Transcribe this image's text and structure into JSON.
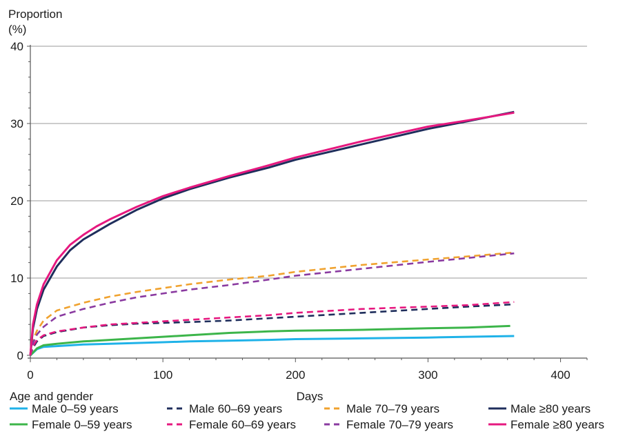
{
  "chart_data": {
    "type": "line",
    "ylabel_line1": "Proportion",
    "ylabel_line2": "(%)",
    "xlabel": "Days",
    "legend_title": "Age and gender",
    "xlim": [
      0,
      420
    ],
    "ylim": [
      0,
      40
    ],
    "xticks": [
      0,
      100,
      200,
      300,
      400
    ],
    "yticks": [
      0,
      10,
      20,
      30,
      40
    ],
    "grid": "horizontal",
    "legend_position": "bottom",
    "series": [
      {
        "name": "Male 0–59 years",
        "color": "#1fb2e8",
        "dash": "solid",
        "x": [
          0,
          5,
          10,
          20,
          40,
          60,
          80,
          100,
          120,
          150,
          180,
          200,
          250,
          300,
          330,
          365
        ],
        "y": [
          0,
          0.8,
          1.1,
          1.2,
          1.4,
          1.5,
          1.6,
          1.7,
          1.8,
          1.9,
          2.0,
          2.1,
          2.2,
          2.3,
          2.4,
          2.5
        ]
      },
      {
        "name": "Male 60–69 years",
        "color": "#1f2e5c",
        "dash": "dashed",
        "x": [
          0,
          2,
          5,
          10,
          20,
          40,
          60,
          80,
          100,
          120,
          150,
          180,
          200,
          250,
          300,
          330,
          365
        ],
        "y": [
          0,
          1.0,
          1.8,
          2.5,
          3.0,
          3.6,
          3.9,
          4.1,
          4.2,
          4.3,
          4.5,
          4.8,
          5.0,
          5.5,
          6.0,
          6.3,
          6.6
        ]
      },
      {
        "name": "Male 70–79 years",
        "color": "#f0a22e",
        "dash": "dashed",
        "x": [
          0,
          2,
          5,
          10,
          20,
          40,
          60,
          80,
          100,
          120,
          150,
          180,
          200,
          250,
          300,
          330,
          365
        ],
        "y": [
          0,
          2.0,
          3.2,
          4.5,
          5.8,
          6.8,
          7.6,
          8.2,
          8.7,
          9.2,
          9.8,
          10.3,
          10.8,
          11.7,
          12.4,
          12.8,
          13.3
        ]
      },
      {
        "name": "Male ≥80 years",
        "color": "#1f2e5c",
        "dash": "solid",
        "x": [
          0,
          2,
          5,
          10,
          20,
          30,
          40,
          50,
          60,
          80,
          100,
          120,
          150,
          180,
          200,
          250,
          300,
          330,
          365
        ],
        "y": [
          0,
          3.5,
          6.0,
          8.5,
          11.5,
          13.6,
          15.0,
          16.0,
          17.0,
          18.8,
          20.3,
          21.5,
          23.0,
          24.3,
          25.3,
          27.3,
          29.3,
          30.3,
          31.5
        ]
      },
      {
        "name": "Female 0–59 years",
        "color": "#3cb54a",
        "dash": "solid",
        "x": [
          0,
          5,
          10,
          20,
          40,
          60,
          80,
          100,
          120,
          150,
          180,
          200,
          250,
          300,
          330,
          362
        ],
        "y": [
          0,
          0.9,
          1.3,
          1.5,
          1.8,
          2.0,
          2.2,
          2.4,
          2.6,
          2.9,
          3.1,
          3.2,
          3.3,
          3.5,
          3.6,
          3.8
        ]
      },
      {
        "name": "Female 60–69 years",
        "color": "#e6187f",
        "dash": "dashed",
        "x": [
          0,
          2,
          5,
          10,
          20,
          40,
          60,
          80,
          100,
          120,
          150,
          180,
          200,
          250,
          300,
          330,
          365
        ],
        "y": [
          0,
          1.2,
          2.0,
          2.6,
          3.1,
          3.6,
          4.0,
          4.2,
          4.4,
          4.6,
          4.9,
          5.2,
          5.5,
          6.0,
          6.3,
          6.5,
          6.9
        ]
      },
      {
        "name": "Female 70–79 years",
        "color": "#8a3aa0",
        "dash": "dashed",
        "x": [
          0,
          2,
          5,
          10,
          20,
          40,
          60,
          80,
          100,
          120,
          150,
          180,
          200,
          250,
          300,
          330,
          365
        ],
        "y": [
          0,
          1.6,
          2.7,
          3.7,
          5.0,
          6.0,
          6.8,
          7.5,
          8.0,
          8.5,
          9.1,
          9.8,
          10.3,
          11.2,
          12.1,
          12.6,
          13.2
        ]
      },
      {
        "name": "Female ≥80 years",
        "color": "#e6187f",
        "dash": "solid",
        "x": [
          0,
          2,
          5,
          10,
          20,
          30,
          40,
          50,
          60,
          80,
          100,
          120,
          150,
          180,
          200,
          250,
          300,
          330,
          365
        ],
        "y": [
          0,
          4.0,
          6.6,
          9.2,
          12.3,
          14.3,
          15.6,
          16.7,
          17.6,
          19.2,
          20.6,
          21.7,
          23.2,
          24.6,
          25.6,
          27.7,
          29.6,
          30.4,
          31.4
        ]
      }
    ]
  }
}
